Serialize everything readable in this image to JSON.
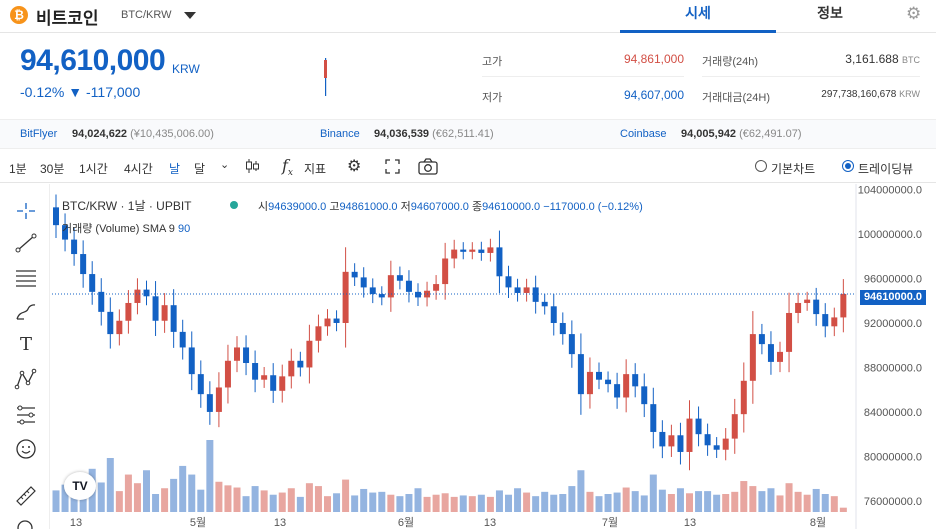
{
  "header": {
    "coin_icon": "bitcoin-icon",
    "coin_symbol": "₿",
    "coin_name": "비트코인",
    "pair": "BTC/KRW",
    "tabs": [
      "시세",
      "정보"
    ],
    "settings_icon": "gear-icon"
  },
  "summary": {
    "price": "94,610,000",
    "unit": "KRW",
    "change_pct": "-0.12%",
    "change_amt": "▼ -117,000",
    "high_label": "고가",
    "high_value": "94,861,000",
    "low_label": "저가",
    "low_value": "94,607,000",
    "volume_label": "거래량(24h)",
    "volume_value": "3,161.688",
    "volume_unit": "BTC",
    "amount_label": "거래대금(24H)",
    "amount_value": "297,738,160,678",
    "amount_unit": "KRW"
  },
  "exchanges": [
    {
      "name": "BitFlyer",
      "value": "94,024,622",
      "sub": "(¥10,435,006.00)"
    },
    {
      "name": "Binance",
      "value": "94,036,539",
      "sub": "(€62,511.41)"
    },
    {
      "name": "Coinbase",
      "value": "94,005,942",
      "sub": "(€62,491.07)"
    }
  ],
  "toolbar": {
    "intervals": [
      "1분",
      "30분",
      "1시간",
      "4시간",
      "날",
      "달"
    ],
    "active_interval": "날",
    "indicator_label": "지표",
    "fx_symbol": "f",
    "fx_sub": "x",
    "chart_mode_basic": "기본차트",
    "chart_mode_tv": "트레이딩뷰",
    "selected_mode": "트레이딩뷰"
  },
  "chart_data": {
    "type": "candlestick",
    "legend": "BTC/KRW · 1날 · UPBIT",
    "ohlc_text": {
      "o_label": "시",
      "o": "94639000.0",
      "h_label": "고",
      "h": "94861000.0",
      "l_label": "저",
      "l": "94607000.0",
      "c_label": "종",
      "c": "94610000.0",
      "chg": "−117000.0 (−0.12%)"
    },
    "volume_legend": "거래량 (Volume)",
    "sma_label": "SMA 9",
    "sma_value": "90",
    "y_ticks": [
      "104000000.0",
      "100000000.0",
      "96000000.0",
      "92000000.0",
      "88000000.0",
      "84000000.0",
      "80000000.0",
      "76000000.0"
    ],
    "y_range": [
      75000000,
      104500000
    ],
    "last_price_label": "94610000.0",
    "last_price": 94610000,
    "x_ticks": [
      "13",
      "5월",
      "13",
      "6월",
      "13",
      "7월",
      "13",
      "8월"
    ],
    "up_color": "#d24f45",
    "down_color": "#1261c4",
    "closes": [
      100800000,
      99500000,
      98200000,
      96400000,
      94800000,
      93000000,
      91000000,
      92200000,
      93800000,
      95000000,
      94400000,
      92200000,
      93600000,
      91200000,
      89800000,
      87400000,
      85600000,
      84000000,
      86200000,
      88600000,
      89800000,
      88400000,
      86900000,
      87300000,
      85900000,
      87200000,
      88600000,
      88000000,
      90400000,
      91700000,
      92400000,
      92000000,
      96600000,
      96100000,
      95200000,
      94600000,
      94300000,
      96300000,
      95800000,
      94800000,
      94300000,
      94900000,
      95500000,
      97800000,
      98600000,
      98400000,
      98600000,
      98300000,
      98800000,
      96200000,
      95200000,
      94700000,
      95200000,
      93900000,
      93500000,
      92000000,
      91000000,
      89200000,
      85600000,
      87600000,
      86900000,
      86500000,
      85300000,
      87400000,
      86300000,
      84700000,
      82200000,
      80900000,
      81900000,
      80400000,
      83400000,
      82000000,
      81000000,
      80600000,
      81600000,
      83800000,
      86800000,
      91000000,
      90100000,
      88500000,
      89400000,
      92900000,
      93800000,
      94100000,
      92800000,
      91700000,
      92500000,
      94610000
    ],
    "volumes": [
      0.3,
      0.38,
      0.27,
      0.45,
      0.6,
      0.41,
      0.75,
      0.29,
      0.52,
      0.4,
      0.58,
      0.25,
      0.33,
      0.46,
      0.64,
      0.52,
      0.31,
      1.0,
      0.42,
      0.37,
      0.34,
      0.22,
      0.36,
      0.3,
      0.24,
      0.27,
      0.33,
      0.21,
      0.4,
      0.36,
      0.22,
      0.26,
      0.45,
      0.23,
      0.32,
      0.27,
      0.28,
      0.24,
      0.22,
      0.25,
      0.33,
      0.21,
      0.24,
      0.26,
      0.21,
      0.23,
      0.22,
      0.24,
      0.21,
      0.3,
      0.24,
      0.33,
      0.27,
      0.22,
      0.28,
      0.24,
      0.25,
      0.36,
      0.58,
      0.28,
      0.22,
      0.25,
      0.27,
      0.34,
      0.29,
      0.23,
      0.52,
      0.31,
      0.25,
      0.33,
      0.26,
      0.29,
      0.29,
      0.24,
      0.25,
      0.28,
      0.43,
      0.36,
      0.29,
      0.33,
      0.23,
      0.4,
      0.28,
      0.24,
      0.32,
      0.25,
      0.22,
      0.06
    ]
  }
}
